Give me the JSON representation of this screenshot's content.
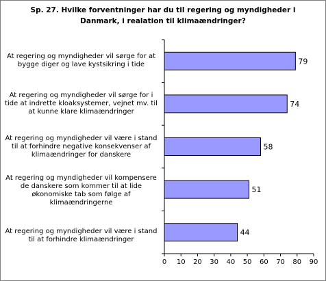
{
  "chart_data": {
    "type": "bar",
    "orientation": "horizontal",
    "title": "Sp. 27. Hvilke forventninger har du til regering og myndigheder i\nDanmark, i realation til klimaændringer?",
    "categories": [
      "At regering og myndigheder vil sørge for at\nbygge diger og lave kystsikring i tide",
      "At regering og myndigheder vil sørge for i\ntide at indrette kloaksystemer, vejnet mv. til\nat kunne klare klimaændringer",
      "At regering og myndigheder vil være i stand\ntil at forhindre negative konsekvenser af\nklimaændringer for danskere",
      "At regering og myndigheder vil kompensere\nde danskere som kommer til at lide\nøkonomiske tab som følge af\nklimaændringerne",
      "At regering og myndigheder vil være i stand\ntil at forhindre klimaændringer"
    ],
    "values": [
      79,
      74,
      58,
      51,
      44
    ],
    "data_labels": [
      "79",
      "74",
      "58",
      "51",
      "44"
    ],
    "xlim": [
      0,
      90
    ],
    "x_ticks": [
      0,
      10,
      20,
      30,
      40,
      50,
      60,
      70,
      80,
      90
    ],
    "x_tick_labels": [
      "0",
      "10",
      "20",
      "30",
      "40",
      "50",
      "60",
      "70",
      "80",
      "90"
    ],
    "xlabel": "",
    "ylabel": "",
    "grid": false,
    "legend": "none",
    "bar_color": "#9999ff",
    "bar_edge_color": "#000000"
  }
}
